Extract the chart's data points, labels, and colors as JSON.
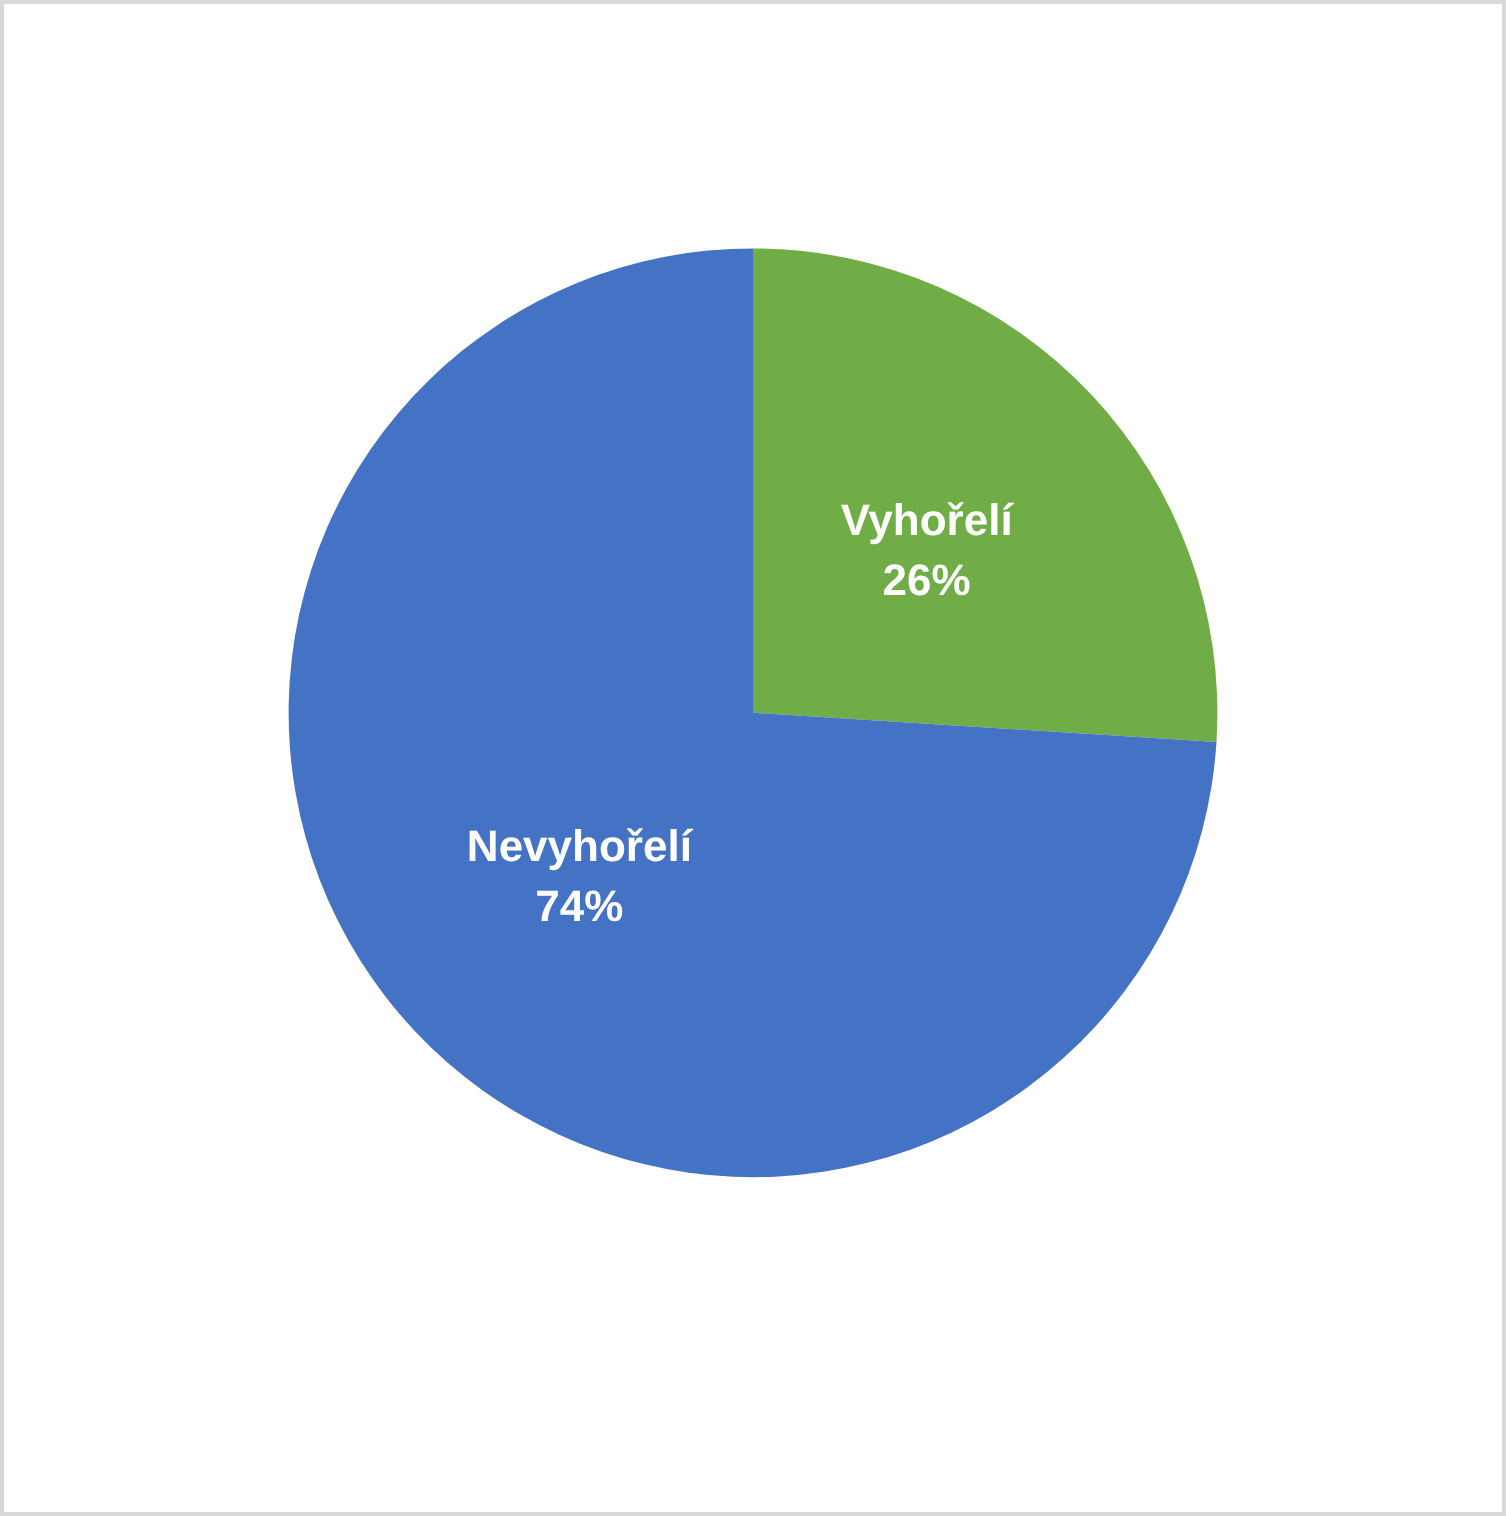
{
  "chart_data": {
    "type": "pie",
    "categories": [
      "Vyhořelí",
      "Nevyhořelí"
    ],
    "values": [
      26,
      74
    ],
    "colors": [
      "#70ad47",
      "#4472c4"
    ],
    "value_labels": [
      "26%",
      "74%"
    ],
    "legend": false
  }
}
